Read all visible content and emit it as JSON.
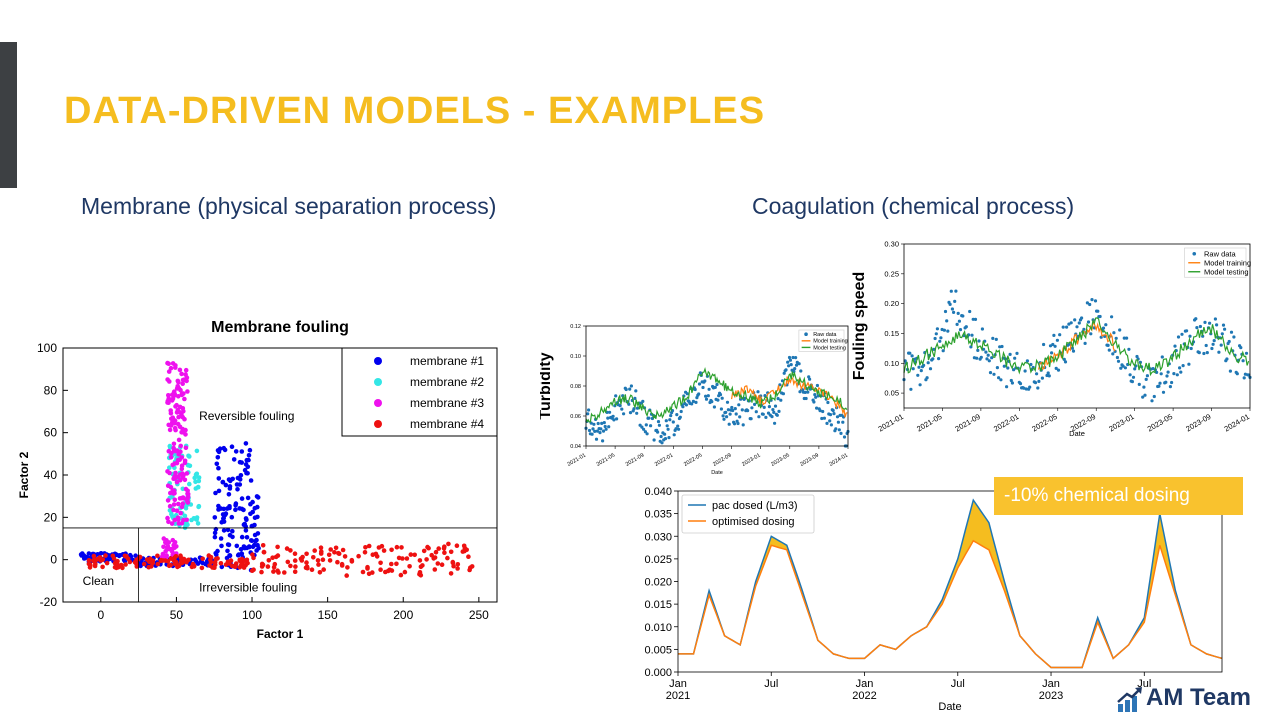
{
  "slide": {
    "title": "DATA-DRIVEN MODELS - EXAMPLES",
    "left_heading": "Membrane (physical separation process)",
    "right_heading": "Coagulation (chemical process)",
    "callout": "-10% chemical dosing",
    "logo_text": "AM Team"
  },
  "colors": {
    "title": "#f5bd1f",
    "heading": "#1f3864",
    "callout_bg": "#f9c22e",
    "m1": "#0000ee",
    "m2": "#33e6e6",
    "m3": "#ee11ee",
    "m4": "#ee1111",
    "raw": "#1f77b4",
    "training": "#ff7f0e",
    "testing": "#2ca02c"
  },
  "chart_data": [
    {
      "id": "membrane",
      "type": "scatter",
      "title": "Membrane fouling",
      "xlabel": "Factor 1",
      "ylabel": "Factor 2",
      "xlim": [
        -25,
        262
      ],
      "ylim": [
        -20,
        100
      ],
      "xticks": [
        0,
        50,
        100,
        150,
        200,
        250
      ],
      "yticks": [
        -20,
        0,
        20,
        40,
        60,
        80,
        100
      ],
      "legend_position": "top-right",
      "thresholds": {
        "hline": 15,
        "vline": 25
      },
      "annotations": [
        {
          "text": "Reversible fouling",
          "x": 65,
          "y": 66
        },
        {
          "text": "Clean",
          "x": -12,
          "y": -12
        },
        {
          "text": "Irreversible fouling",
          "x": 65,
          "y": -15
        }
      ],
      "series": [
        {
          "name": "membrane #1",
          "color": "#0000ee",
          "clusters": [
            {
              "xrange": [
                -15,
                25
              ],
              "ymean": 1,
              "yspread": 2,
              "n": 60
            },
            {
              "xrange": [
                25,
                75
              ],
              "ymean": -1,
              "yspread": 2,
              "n": 60
            },
            {
              "xrange": [
                75,
                100
              ],
              "ymean": 25,
              "yspread": 30,
              "n": 120
            },
            {
              "xrange": [
                100,
                105
              ],
              "ymean": 15,
              "yspread": 15,
              "n": 20
            }
          ]
        },
        {
          "name": "membrane #2",
          "color": "#33e6e6",
          "clusters": [
            {
              "xrange": [
                45,
                65
              ],
              "ymean": 35,
              "yspread": 20,
              "n": 80
            }
          ]
        },
        {
          "name": "membrane #3",
          "color": "#ee11ee",
          "clusters": [
            {
              "xrange": [
                44,
                58
              ],
              "ymean": 55,
              "yspread": 38,
              "n": 150
            },
            {
              "xrange": [
                40,
                50
              ],
              "ymean": 5,
              "yspread": 5,
              "n": 30
            }
          ]
        },
        {
          "name": "membrane #4",
          "color": "#ee1111",
          "clusters": [
            {
              "xrange": [
                -10,
                100
              ],
              "ymean": -1,
              "yspread": 3,
              "n": 120
            },
            {
              "xrange": [
                100,
                248
              ],
              "ymean": 0,
              "yspread": 8,
              "n": 140
            }
          ]
        }
      ]
    },
    {
      "id": "turbidity",
      "type": "line",
      "xlabel": "Date",
      "ylabel": "Turbidity",
      "xlim": [
        "2021-01",
        "2024-01"
      ],
      "ylim": [
        0.04,
        0.12
      ],
      "xticks": [
        "2021-01",
        "2021-05",
        "2021-09",
        "2022-01",
        "2022-05",
        "2022-09",
        "2023-01",
        "2023-05",
        "2023-09",
        "2024-01"
      ],
      "yticks": [
        0.04,
        0.06,
        0.08,
        0.1,
        0.12
      ],
      "legend_position": "top-right",
      "series": [
        {
          "name": "Raw data",
          "style": "dots",
          "color": "#1f77b4",
          "points": [
            [
              "2021-01",
              0.055
            ],
            [
              "2021-03",
              0.05
            ],
            [
              "2021-05",
              0.066
            ],
            [
              "2021-07",
              0.072
            ],
            [
              "2021-09",
              0.06
            ],
            [
              "2021-11",
              0.048
            ],
            [
              "2022-01",
              0.055
            ],
            [
              "2022-03",
              0.07
            ],
            [
              "2022-05",
              0.082
            ],
            [
              "2022-07",
              0.074
            ],
            [
              "2022-09",
              0.06
            ],
            [
              "2022-11",
              0.065
            ],
            [
              "2023-01",
              0.07
            ],
            [
              "2023-03",
              0.062
            ],
            [
              "2023-05",
              0.095
            ],
            [
              "2023-07",
              0.08
            ],
            [
              "2023-09",
              0.07
            ],
            [
              "2023-11",
              0.06
            ],
            [
              "2024-01",
              0.045
            ]
          ]
        },
        {
          "name": "Model training",
          "style": "line",
          "color": "#ff7f0e",
          "points": [
            [
              "2022-09",
              0.072
            ],
            [
              "2022-11",
              0.078
            ],
            [
              "2023-01",
              0.07
            ],
            [
              "2023-03",
              0.075
            ],
            [
              "2023-05",
              0.085
            ],
            [
              "2023-07",
              0.08
            ],
            [
              "2023-09",
              0.078
            ],
            [
              "2023-11",
              0.07
            ],
            [
              "2024-01",
              0.06
            ]
          ]
        },
        {
          "name": "Model testing",
          "style": "line",
          "color": "#2ca02c",
          "points": [
            [
              "2021-01",
              0.058
            ],
            [
              "2021-03",
              0.062
            ],
            [
              "2021-05",
              0.07
            ],
            [
              "2021-07",
              0.072
            ],
            [
              "2021-09",
              0.064
            ],
            [
              "2021-11",
              0.06
            ],
            [
              "2022-01",
              0.066
            ],
            [
              "2022-03",
              0.074
            ],
            [
              "2022-05",
              0.09
            ],
            [
              "2022-07",
              0.084
            ],
            [
              "2022-09",
              0.076
            ],
            [
              "2022-11",
              0.074
            ],
            [
              "2023-01",
              0.068
            ],
            [
              "2023-03",
              0.074
            ],
            [
              "2023-05",
              0.088
            ],
            [
              "2023-07",
              0.082
            ],
            [
              "2023-09",
              0.076
            ],
            [
              "2023-11",
              0.072
            ],
            [
              "2024-01",
              0.066
            ]
          ]
        }
      ]
    },
    {
      "id": "fouling-speed",
      "type": "line",
      "xlabel": "Date",
      "ylabel": "Fouling speed",
      "xlim": [
        "2021-01",
        "2024-01"
      ],
      "ylim": [
        0.025,
        0.3
      ],
      "xticks": [
        "2021-01",
        "2021-05",
        "2021-09",
        "2022-01",
        "2022-05",
        "2022-09",
        "2023-01",
        "2023-05",
        "2023-09",
        "2024-01"
      ],
      "yticks": [
        0.05,
        0.1,
        0.15,
        0.2,
        0.25,
        0.3
      ],
      "legend_position": "top-right",
      "series": [
        {
          "name": "Raw data",
          "style": "dots",
          "color": "#1f77b4",
          "points": [
            [
              "2021-01",
              0.08
            ],
            [
              "2021-03",
              0.1
            ],
            [
              "2021-05",
              0.14
            ],
            [
              "2021-06",
              0.22
            ],
            [
              "2021-07",
              0.17
            ],
            [
              "2021-09",
              0.13
            ],
            [
              "2021-11",
              0.1
            ],
            [
              "2022-01",
              0.085
            ],
            [
              "2022-03",
              0.09
            ],
            [
              "2022-05",
              0.12
            ],
            [
              "2022-07",
              0.15
            ],
            [
              "2022-09",
              0.19
            ],
            [
              "2022-11",
              0.14
            ],
            [
              "2023-01",
              0.09
            ],
            [
              "2023-03",
              0.06
            ],
            [
              "2023-05",
              0.1
            ],
            [
              "2023-07",
              0.14
            ],
            [
              "2023-09",
              0.15
            ],
            [
              "2023-11",
              0.12
            ],
            [
              "2024-01",
              0.08
            ]
          ]
        },
        {
          "name": "Model training",
          "style": "line",
          "color": "#ff7f0e",
          "points": [
            [
              "2022-03",
              0.095
            ],
            [
              "2022-05",
              0.11
            ],
            [
              "2022-07",
              0.14
            ],
            [
              "2022-09",
              0.165
            ],
            [
              "2022-11",
              0.13
            ]
          ]
        },
        {
          "name": "Model testing",
          "style": "line",
          "color": "#2ca02c",
          "points": [
            [
              "2021-01",
              0.09
            ],
            [
              "2021-03",
              0.11
            ],
            [
              "2021-05",
              0.13
            ],
            [
              "2021-07",
              0.15
            ],
            [
              "2021-09",
              0.13
            ],
            [
              "2021-11",
              0.11
            ],
            [
              "2022-01",
              0.09
            ],
            [
              "2022-03",
              0.095
            ],
            [
              "2022-05",
              0.11
            ],
            [
              "2022-07",
              0.14
            ],
            [
              "2022-09",
              0.17
            ],
            [
              "2022-11",
              0.13
            ],
            [
              "2023-01",
              0.1
            ],
            [
              "2023-03",
              0.09
            ],
            [
              "2023-05",
              0.11
            ],
            [
              "2023-07",
              0.14
            ],
            [
              "2023-09",
              0.16
            ],
            [
              "2023-11",
              0.12
            ],
            [
              "2024-01",
              0.1
            ]
          ]
        }
      ]
    },
    {
      "id": "pac-dosing",
      "type": "area",
      "xlabel": "Date",
      "ylabel": "",
      "xlim": [
        "2021-01",
        "2023-12"
      ],
      "ylim": [
        0,
        0.04
      ],
      "xticks": [
        {
          "at": "2021-01",
          "label": "Jan",
          "sub": "2021"
        },
        {
          "at": "2021-07",
          "label": "Jul",
          "sub": ""
        },
        {
          "at": "2022-01",
          "label": "Jan",
          "sub": "2022"
        },
        {
          "at": "2022-07",
          "label": "Jul",
          "sub": ""
        },
        {
          "at": "2023-01",
          "label": "Jan",
          "sub": "2023"
        },
        {
          "at": "2023-07",
          "label": "Jul",
          "sub": ""
        }
      ],
      "yticks": [
        0,
        0.005,
        0.01,
        0.015,
        0.02,
        0.025,
        0.03,
        0.035,
        0.04
      ],
      "legend_position": "top-left",
      "fill_between_color": "#f5bd1f",
      "series": [
        {
          "name": "pac dosed (L/m3)",
          "color": "#1f77b4",
          "points": [
            [
              "2021-01",
              0.004
            ],
            [
              "2021-02",
              0.004
            ],
            [
              "2021-03",
              0.018
            ],
            [
              "2021-04",
              0.008
            ],
            [
              "2021-05",
              0.006
            ],
            [
              "2021-06",
              0.02
            ],
            [
              "2021-07",
              0.03
            ],
            [
              "2021-08",
              0.028
            ],
            [
              "2021-09",
              0.018
            ],
            [
              "2021-10",
              0.007
            ],
            [
              "2021-11",
              0.004
            ],
            [
              "2021-12",
              0.003
            ],
            [
              "2022-01",
              0.003
            ],
            [
              "2022-02",
              0.006
            ],
            [
              "2022-03",
              0.005
            ],
            [
              "2022-04",
              0.008
            ],
            [
              "2022-05",
              0.01
            ],
            [
              "2022-06",
              0.016
            ],
            [
              "2022-07",
              0.025
            ],
            [
              "2022-08",
              0.038
            ],
            [
              "2022-09",
              0.033
            ],
            [
              "2022-10",
              0.02
            ],
            [
              "2022-11",
              0.008
            ],
            [
              "2022-12",
              0.004
            ],
            [
              "2023-01",
              0.001
            ],
            [
              "2023-02",
              0.001
            ],
            [
              "2023-03",
              0.001
            ],
            [
              "2023-04",
              0.012
            ],
            [
              "2023-05",
              0.003
            ],
            [
              "2023-06",
              0.006
            ],
            [
              "2023-07",
              0.012
            ],
            [
              "2023-08",
              0.035
            ],
            [
              "2023-09",
              0.018
            ],
            [
              "2023-10",
              0.006
            ],
            [
              "2023-11",
              0.004
            ],
            [
              "2023-12",
              0.003
            ]
          ]
        },
        {
          "name": "optimised dosing",
          "color": "#ff7f0e",
          "points": [
            [
              "2021-01",
              0.004
            ],
            [
              "2021-02",
              0.004
            ],
            [
              "2021-03",
              0.017
            ],
            [
              "2021-04",
              0.008
            ],
            [
              "2021-05",
              0.006
            ],
            [
              "2021-06",
              0.019
            ],
            [
              "2021-07",
              0.028
            ],
            [
              "2021-08",
              0.027
            ],
            [
              "2021-09",
              0.017
            ],
            [
              "2021-10",
              0.007
            ],
            [
              "2021-11",
              0.004
            ],
            [
              "2021-12",
              0.003
            ],
            [
              "2022-01",
              0.003
            ],
            [
              "2022-02",
              0.006
            ],
            [
              "2022-03",
              0.005
            ],
            [
              "2022-04",
              0.008
            ],
            [
              "2022-05",
              0.01
            ],
            [
              "2022-06",
              0.015
            ],
            [
              "2022-07",
              0.023
            ],
            [
              "2022-08",
              0.029
            ],
            [
              "2022-09",
              0.027
            ],
            [
              "2022-10",
              0.018
            ],
            [
              "2022-11",
              0.008
            ],
            [
              "2022-12",
              0.004
            ],
            [
              "2023-01",
              0.001
            ],
            [
              "2023-02",
              0.001
            ],
            [
              "2023-03",
              0.001
            ],
            [
              "2023-04",
              0.011
            ],
            [
              "2023-05",
              0.003
            ],
            [
              "2023-06",
              0.006
            ],
            [
              "2023-07",
              0.011
            ],
            [
              "2023-08",
              0.028
            ],
            [
              "2023-09",
              0.017
            ],
            [
              "2023-10",
              0.006
            ],
            [
              "2023-11",
              0.004
            ],
            [
              "2023-12",
              0.003
            ]
          ]
        }
      ]
    }
  ]
}
